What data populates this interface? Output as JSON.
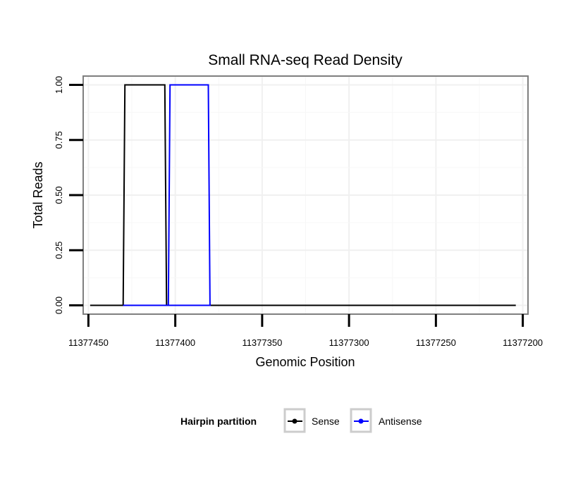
{
  "chart_data": {
    "type": "line",
    "title": "Small RNA-seq Read Density",
    "xlabel": "Genomic Position",
    "ylabel": "Total Reads",
    "xlim": [
      11377453,
      11377197
    ],
    "ylim": [
      -0.04,
      1.04
    ],
    "x_reversed": true,
    "x_ticks": [
      11377450,
      11377400,
      11377350,
      11377300,
      11377250,
      11377200
    ],
    "x_tick_labels": [
      "11377450",
      "11377400",
      "11377350",
      "11377300",
      "11377250",
      "11377200"
    ],
    "y_ticks": [
      0,
      0.25,
      0.5,
      0.75,
      1
    ],
    "y_tick_labels": [
      "0.00",
      "0.25",
      "0.50",
      "0.75",
      "1.00"
    ],
    "grid": true,
    "legend": {
      "title": "Hairpin partition",
      "position": "bottom"
    },
    "series": [
      {
        "name": "Sense",
        "color": "#000000",
        "x": [
          11377449,
          11377430,
          11377429,
          11377406,
          11377405,
          11377204
        ],
        "y": [
          0,
          0,
          1,
          1,
          0,
          0
        ]
      },
      {
        "name": "Antisense",
        "color": "#0000ff",
        "x": [
          11377430,
          11377404,
          11377403,
          11377381,
          11377380,
          11377405
        ],
        "y": [
          0,
          0,
          1,
          1,
          0,
          0
        ]
      }
    ]
  }
}
